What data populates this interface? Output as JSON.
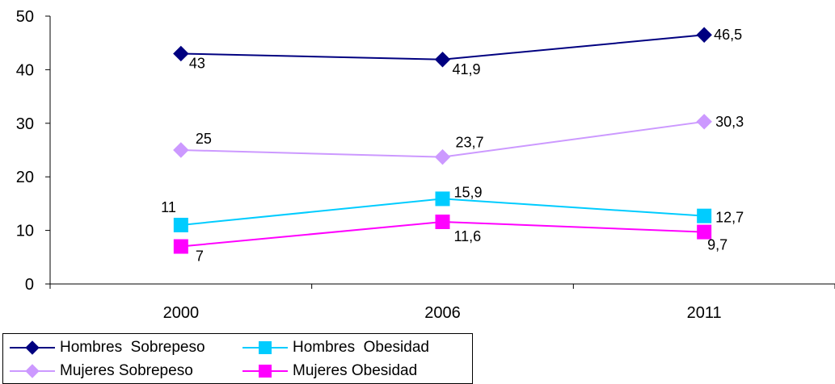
{
  "chart_data": {
    "type": "line",
    "categories": [
      "2000",
      "2006",
      "2011"
    ],
    "ylim": [
      0,
      50
    ],
    "yticks": [
      0,
      10,
      20,
      30,
      40,
      50
    ],
    "grid": false,
    "legend_position": "bottom-left",
    "series": [
      {
        "name": "Hombres  Sobrepeso",
        "values": [
          43,
          41.9,
          46.5
        ],
        "labels": [
          "43",
          "41,9",
          "46,5"
        ],
        "color": "#000080",
        "marker": "diamond"
      },
      {
        "name": "Hombres  Obesidad",
        "values": [
          11,
          15.9,
          12.7
        ],
        "labels": [
          "11",
          "15,9",
          "12,7"
        ],
        "color": "#00CCFF",
        "marker": "square"
      },
      {
        "name": "Mujeres Sobrepeso",
        "values": [
          25,
          23.7,
          30.3
        ],
        "labels": [
          "25",
          "23,7",
          "30,3"
        ],
        "color": "#CC99FF",
        "marker": "diamond"
      },
      {
        "name": "Mujeres Obesidad",
        "values": [
          7,
          11.6,
          9.7
        ],
        "labels": [
          "7",
          "11,6",
          "9,7"
        ],
        "color": "#FF00FF",
        "marker": "square"
      }
    ]
  }
}
